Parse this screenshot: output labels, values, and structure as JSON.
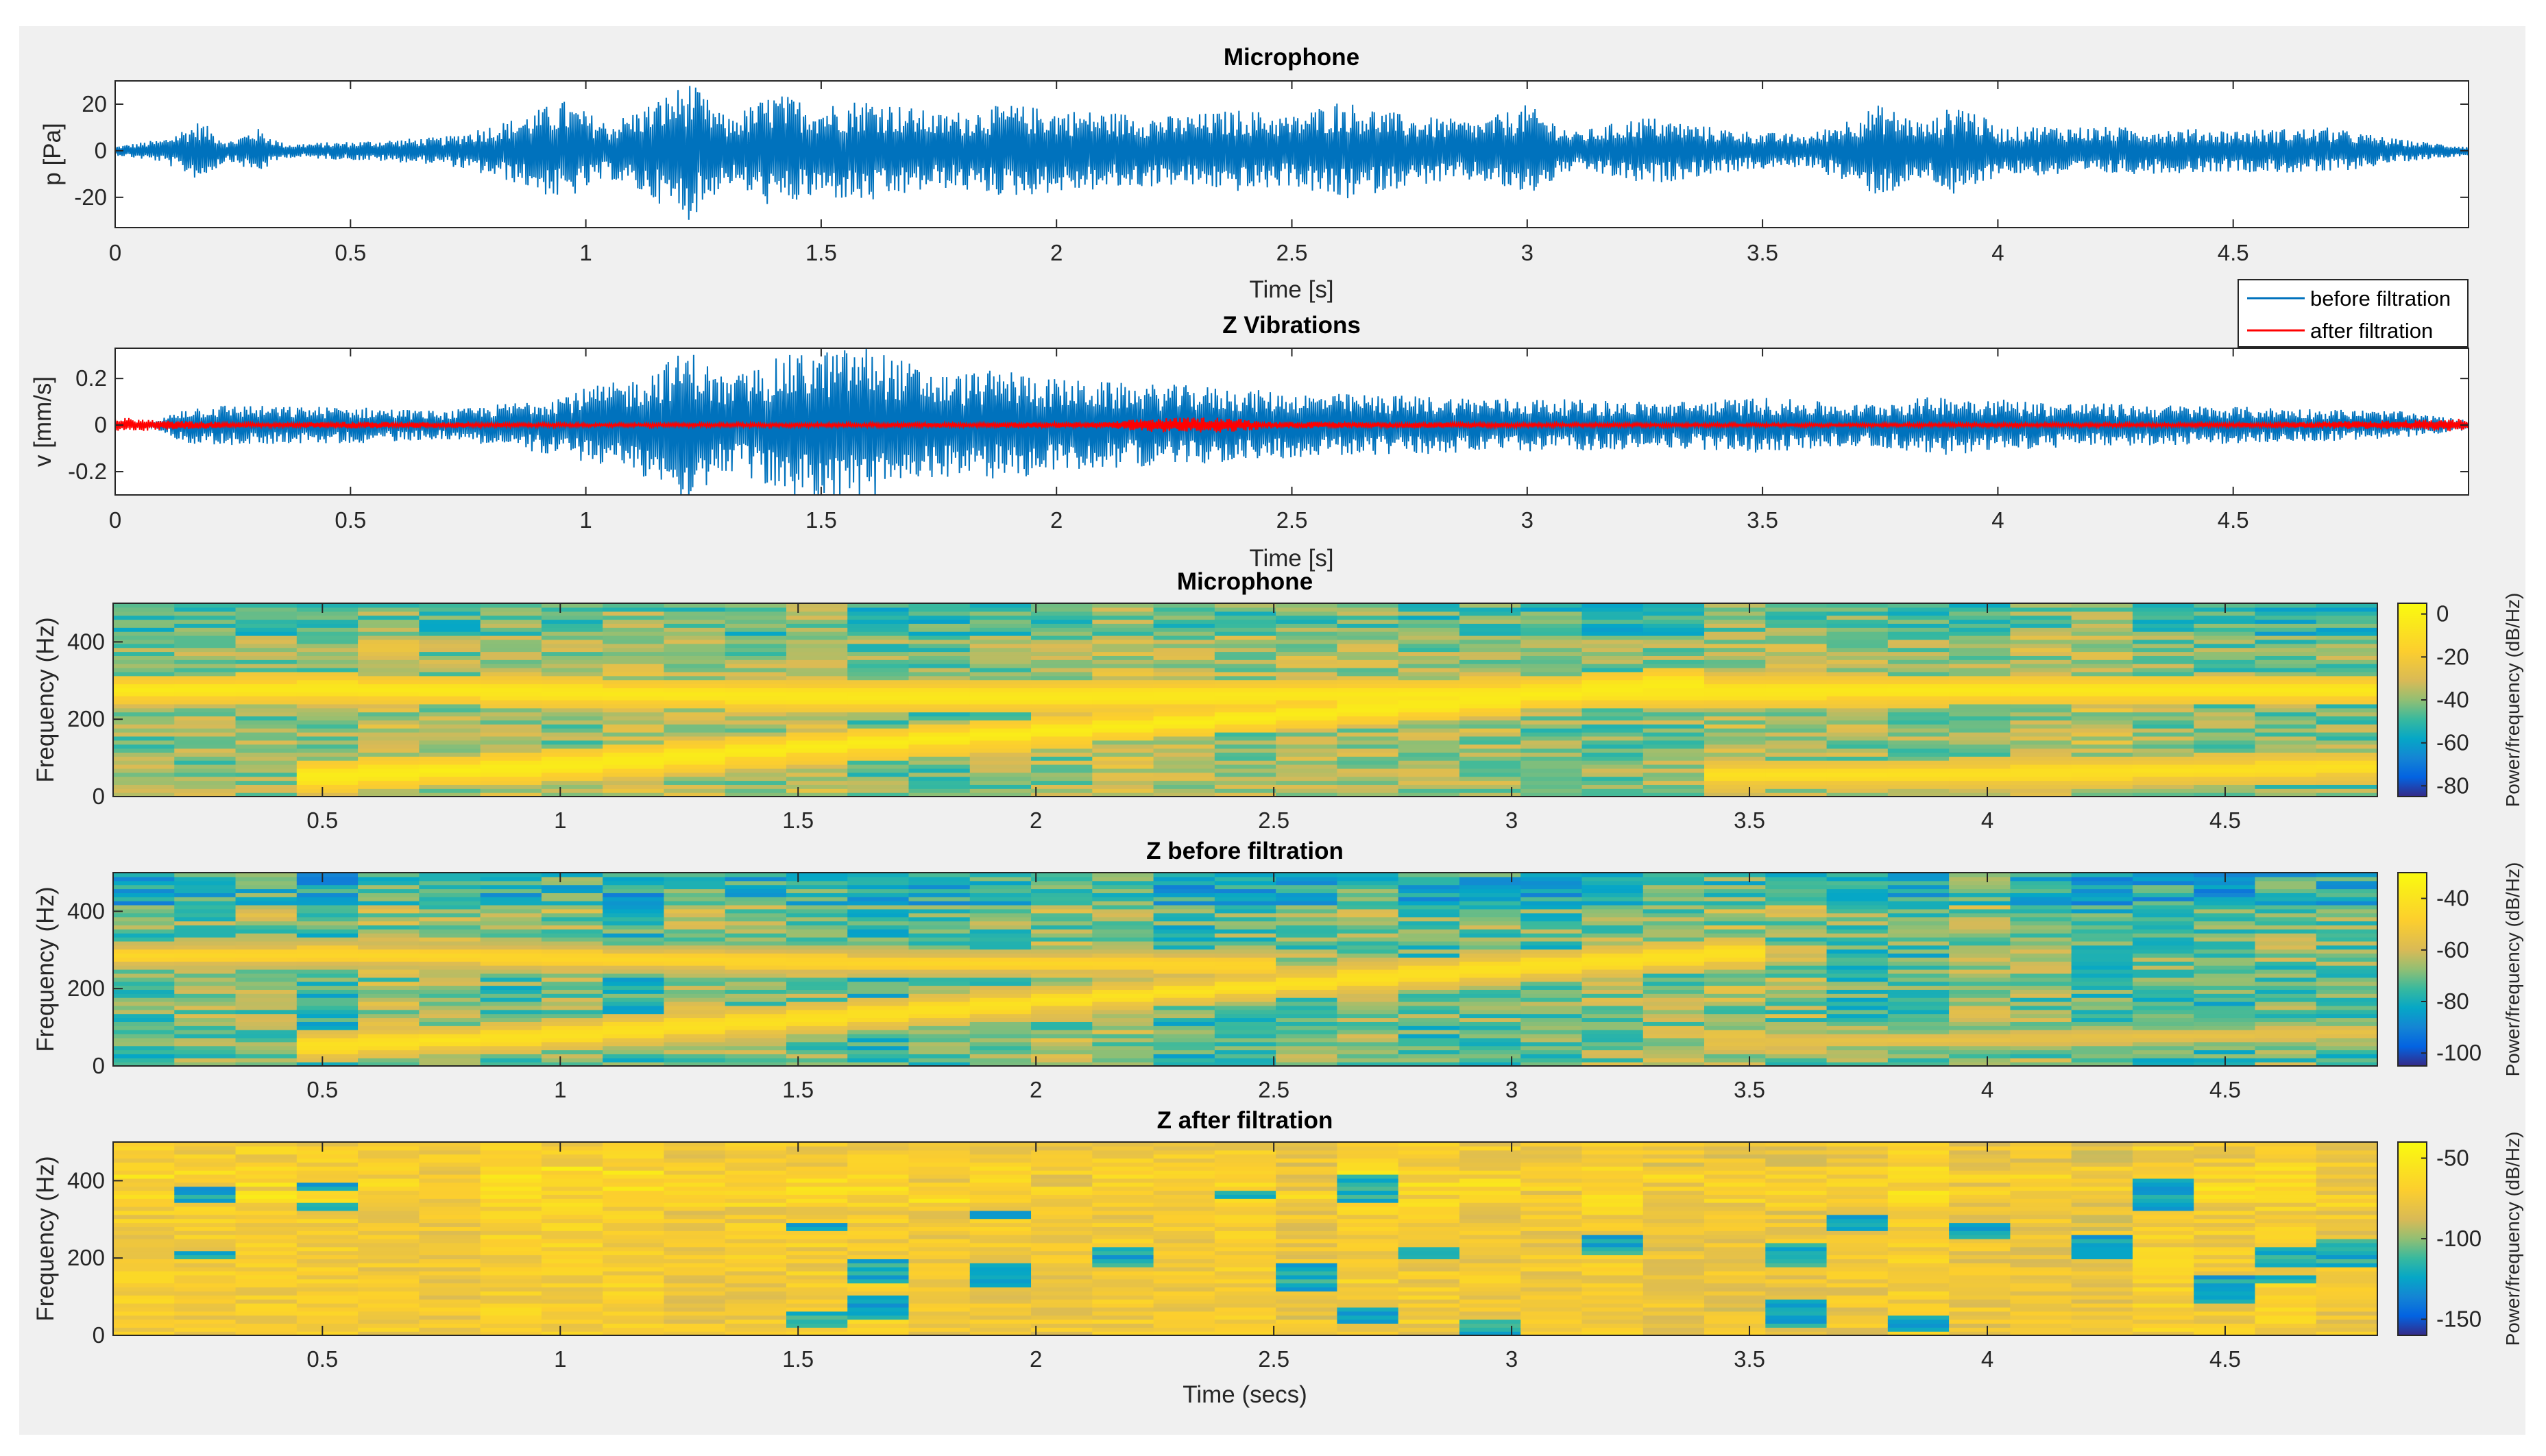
{
  "figure": {
    "background": "#f0f0f0",
    "panel": "#ffffff"
  },
  "chart_data": [
    {
      "type": "line",
      "title": "Microphone",
      "xlabel": "Time [s]",
      "ylabel": "p [Pa]",
      "xlim": [
        0,
        5
      ],
      "ylim": [
        -33,
        30
      ],
      "xticks": [
        0,
        0.5,
        1,
        1.5,
        2,
        2.5,
        3,
        3.5,
        4,
        4.5
      ],
      "xtick_labels": [
        "0",
        "0.5",
        "1",
        "1.5",
        "2",
        "2.5",
        "3",
        "3.5",
        "4",
        "4.5"
      ],
      "yticks": [
        20,
        0,
        -20
      ],
      "ytick_labels": [
        "20",
        "0",
        "-20"
      ],
      "series": [
        {
          "name": "before filtration",
          "color": "#0072bd",
          "envelope_t": [
            0,
            0.1,
            0.18,
            0.24,
            0.3,
            0.36,
            0.5,
            0.7,
            0.85,
            0.95,
            1.05,
            1.15,
            1.22,
            1.3,
            1.4,
            1.5,
            1.6,
            1.75,
            1.9,
            2.0,
            2.1,
            2.25,
            2.4,
            2.5,
            2.6,
            2.75,
            2.9,
            3.0,
            3.1,
            3.25,
            3.4,
            3.5,
            3.6,
            3.75,
            3.85,
            3.92,
            4.0,
            4.1,
            4.3,
            4.5,
            4.7,
            4.85,
            5.0
          ],
          "envelope_amp": [
            2,
            5,
            13,
            4,
            10,
            3,
            4,
            6,
            14,
            22,
            12,
            22,
            30,
            14,
            25,
            20,
            23,
            16,
            20,
            18,
            17,
            15,
            18,
            15,
            22,
            15,
            13,
            20,
            8,
            15,
            10,
            8,
            7,
            20,
            12,
            22,
            10,
            11,
            10,
            9,
            10,
            5,
            2
          ]
        }
      ]
    },
    {
      "type": "line",
      "title": "Z Vibrations",
      "xlabel": "Time [s]",
      "ylabel": "v [mm/s]",
      "xlim": [
        0,
        5
      ],
      "ylim": [
        -0.3,
        0.33
      ],
      "xticks": [
        0,
        0.5,
        1,
        1.5,
        2,
        2.5,
        3,
        3.5,
        4,
        4.5
      ],
      "xtick_labels": [
        "0",
        "0.5",
        "1",
        "1.5",
        "2",
        "2.5",
        "3",
        "3.5",
        "4",
        "4.5"
      ],
      "yticks": [
        0.2,
        0,
        -0.2
      ],
      "ytick_labels": [
        "0.2",
        "0",
        "-0.2"
      ],
      "legend": {
        "location": "top-right",
        "entries": [
          "before filtration",
          "after filtration"
        ]
      },
      "series": [
        {
          "name": "before filtration",
          "color": "#0072bd",
          "envelope_t": [
            0,
            0.08,
            0.15,
            0.25,
            0.35,
            0.5,
            0.7,
            0.85,
            1.0,
            1.1,
            1.22,
            1.3,
            1.42,
            1.5,
            1.6,
            1.75,
            1.9,
            2.0,
            2.15,
            2.3,
            2.5,
            2.7,
            2.9,
            3.1,
            3.3,
            3.5,
            3.7,
            3.9,
            4.1,
            4.3,
            4.5,
            4.7,
            4.85,
            5.0
          ],
          "envelope_amp": [
            0,
            0.01,
            0.08,
            0.09,
            0.08,
            0.08,
            0.06,
            0.1,
            0.16,
            0.2,
            0.33,
            0.2,
            0.3,
            0.32,
            0.34,
            0.22,
            0.24,
            0.2,
            0.18,
            0.17,
            0.14,
            0.13,
            0.12,
            0.11,
            0.1,
            0.12,
            0.09,
            0.13,
            0.1,
            0.09,
            0.08,
            0.07,
            0.06,
            0.02
          ]
        },
        {
          "name": "after filtration",
          "color": "#ff0000",
          "envelope_t": [
            0,
            0.1,
            0.3,
            0.5,
            1.0,
            1.5,
            2.1,
            2.2,
            2.35,
            2.45,
            3.0,
            3.5,
            4.0,
            4.5,
            4.85,
            5.0
          ],
          "envelope_amp": [
            0.035,
            0.02,
            0.01,
            0.015,
            0.008,
            0.01,
            0.012,
            0.03,
            0.035,
            0.015,
            0.01,
            0.008,
            0.01,
            0.01,
            0.02,
            0.03
          ]
        }
      ]
    },
    {
      "type": "heatmap",
      "title": "Microphone",
      "ylabel": "Frequency (Hz)",
      "xlim": [
        0.06,
        4.82
      ],
      "ylim": [
        0,
        500
      ],
      "xticks": [
        0.5,
        1,
        1.5,
        2,
        2.5,
        3,
        3.5,
        4,
        4.5
      ],
      "xtick_labels": [
        "0.5",
        "1",
        "1.5",
        "2",
        "2.5",
        "3",
        "3.5",
        "4",
        "4.5"
      ],
      "yticks": [
        0,
        200,
        400
      ],
      "ytick_labels": [
        "0",
        "200",
        "400"
      ],
      "colorbar": {
        "label": "Power/frequency (dB/Hz)",
        "range": [
          -85,
          5
        ],
        "ticks": [
          0,
          -20,
          -40,
          -60,
          -80
        ],
        "tick_labels": [
          "0",
          "-20",
          "-40",
          "-60",
          "-80"
        ]
      },
      "segments": 37,
      "tones": [
        {
          "t": [
            0,
            0.5,
            1,
            1.5,
            2,
            2.5,
            3,
            3.5,
            4,
            4.5,
            5
          ],
          "f": [
            275,
            280,
            270,
            260,
            258,
            262,
            268,
            272,
            275,
            275,
            275
          ],
          "level": -4
        },
        {
          "t": [
            0.45,
            1.0,
            1.5,
            2.0,
            2.5,
            3.0,
            3.3
          ],
          "f": [
            50,
            80,
            125,
            165,
            210,
            255,
            290
          ],
          "level": -2
        },
        {
          "t": [
            3.4,
            4.0,
            4.5,
            4.9
          ],
          "f": [
            55,
            60,
            70,
            80
          ],
          "level": -8
        }
      ],
      "background_db": -38
    },
    {
      "type": "heatmap",
      "title": "Z before filtration",
      "ylabel": "Frequency (Hz)",
      "xlim": [
        0.06,
        4.82
      ],
      "ylim": [
        0,
        500
      ],
      "xticks": [
        0.5,
        1,
        1.5,
        2,
        2.5,
        3,
        3.5,
        4,
        4.5
      ],
      "xtick_labels": [
        "0.5",
        "1",
        "1.5",
        "2",
        "2.5",
        "3",
        "3.5",
        "4",
        "4.5"
      ],
      "yticks": [
        0,
        200,
        400
      ],
      "ytick_labels": [
        "0",
        "200",
        "400"
      ],
      "colorbar": {
        "label": "Power/frequency (dB/Hz)",
        "range": [
          -105,
          -30
        ],
        "ticks": [
          -40,
          -60,
          -80,
          -100
        ],
        "tick_labels": [
          "-40",
          "-60",
          "-80",
          "-100"
        ]
      },
      "segments": 37,
      "tones": [
        {
          "t": [
            0,
            0.5,
            1,
            1.5,
            2,
            2.5
          ],
          "f": [
            285,
            290,
            280,
            270,
            265,
            260
          ],
          "level": -45
        },
        {
          "t": [
            0.45,
            1.0,
            1.5,
            2.0,
            2.5,
            3.0,
            3.5
          ],
          "f": [
            50,
            80,
            120,
            165,
            210,
            255,
            295
          ],
          "level": -40
        },
        {
          "t": [
            3.4,
            4.0,
            4.5,
            4.9
          ],
          "f": [
            60,
            70,
            80,
            90
          ],
          "level": -55
        }
      ],
      "background_db": -70
    },
    {
      "type": "heatmap",
      "title": "Z after filtration",
      "xlabel": "Time (secs)",
      "ylabel": "Frequency (Hz)",
      "xlim": [
        0.06,
        4.82
      ],
      "ylim": [
        0,
        500
      ],
      "xticks": [
        0.5,
        1,
        1.5,
        2,
        2.5,
        3,
        3.5,
        4,
        4.5
      ],
      "xtick_labels": [
        "0.5",
        "1",
        "1.5",
        "2",
        "2.5",
        "3",
        "3.5",
        "4",
        "4.5"
      ],
      "yticks": [
        0,
        200,
        400
      ],
      "ytick_labels": [
        "0",
        "200",
        "400"
      ],
      "colorbar": {
        "label": "Power/frequency (dB/Hz)",
        "range": [
          -160,
          -40
        ],
        "ticks": [
          -50,
          -100,
          -150
        ],
        "tick_labels": [
          "-50",
          "-100",
          "-150"
        ]
      },
      "segments": 37,
      "tones": [],
      "background_db": -75
    }
  ]
}
